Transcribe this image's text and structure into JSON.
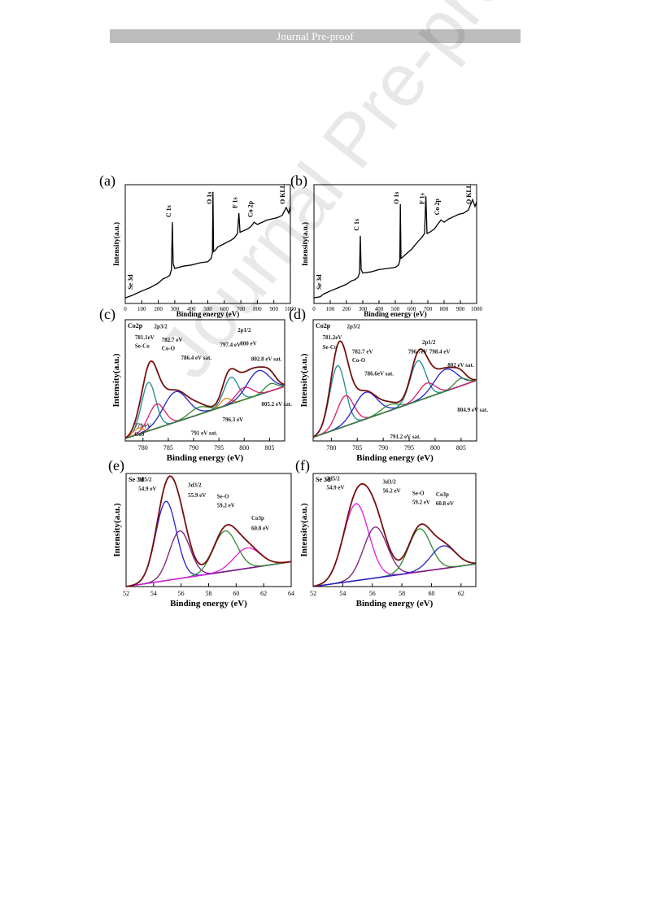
{
  "header": {
    "banner": "Journal Pre-proof"
  },
  "watermark": "Journal Pre-proof",
  "chart_data": [
    {
      "panel": "(a)",
      "type": "line",
      "xlabel": "Binding energy (eV)",
      "ylabel": "Intensity(a.u.)",
      "xlim": [
        0,
        1000
      ],
      "xticks": [
        0,
        100,
        200,
        300,
        400,
        500,
        600,
        700,
        800,
        900,
        1000
      ],
      "peaks_labels": [
        {
          "text": "Se 3d",
          "x": 55
        },
        {
          "text": "C 1s",
          "x": 285
        },
        {
          "text": "O 1s",
          "x": 531
        },
        {
          "text": "F 1s",
          "x": 688
        },
        {
          "text": "Co 2p",
          "x": 781
        },
        {
          "text": "O KLL",
          "x": 975
        }
      ],
      "series": [
        {
          "x": [
            0,
            40,
            55,
            70,
            100,
            150,
            200,
            230,
            250,
            270,
            280,
            285,
            290,
            300,
            350,
            400,
            450,
            500,
            520,
            528,
            531,
            535,
            545,
            560,
            600,
            640,
            660,
            680,
            688,
            695,
            710,
            740,
            760,
            781,
            800,
            830,
            860,
            890,
            920,
            950,
            975,
            990,
            1000
          ],
          "y": [
            0.05,
            0.07,
            0.08,
            0.09,
            0.11,
            0.14,
            0.18,
            0.22,
            0.23,
            0.25,
            0.3,
            0.72,
            0.35,
            0.31,
            0.33,
            0.34,
            0.36,
            0.37,
            0.4,
            0.45,
            0.99,
            0.46,
            0.47,
            0.5,
            0.53,
            0.56,
            0.58,
            0.62,
            0.8,
            0.63,
            0.64,
            0.66,
            0.68,
            0.72,
            0.7,
            0.72,
            0.74,
            0.75,
            0.76,
            0.78,
            0.85,
            0.8,
            0.86
          ]
        }
      ]
    },
    {
      "panel": "(b)",
      "type": "line",
      "xlabel": "Binding energy (eV)",
      "ylabel": "Intensity(a.u.)",
      "xlim": [
        0,
        1000
      ],
      "xticks": [
        0,
        100,
        200,
        300,
        400,
        500,
        600,
        700,
        800,
        900,
        1000
      ],
      "peaks_labels": [
        {
          "text": "Se 3d",
          "x": 55
        },
        {
          "text": "C 1s",
          "x": 285
        },
        {
          "text": "O 1s",
          "x": 531
        },
        {
          "text": "F 1s",
          "x": 688
        },
        {
          "text": "Co 2p",
          "x": 781
        },
        {
          "text": "O KLL",
          "x": 975
        }
      ],
      "series": [
        {
          "x": [
            0,
            40,
            55,
            70,
            100,
            150,
            200,
            230,
            250,
            270,
            280,
            285,
            290,
            300,
            350,
            400,
            450,
            500,
            520,
            528,
            531,
            535,
            545,
            560,
            600,
            640,
            660,
            680,
            688,
            695,
            710,
            740,
            760,
            781,
            800,
            830,
            860,
            890,
            920,
            950,
            975,
            990,
            1000
          ],
          "y": [
            0.05,
            0.06,
            0.08,
            0.09,
            0.11,
            0.14,
            0.17,
            0.2,
            0.21,
            0.23,
            0.27,
            0.6,
            0.3,
            0.27,
            0.28,
            0.3,
            0.31,
            0.32,
            0.34,
            0.38,
            0.88,
            0.4,
            0.41,
            0.43,
            0.48,
            0.55,
            0.58,
            0.62,
            0.95,
            0.62,
            0.63,
            0.66,
            0.7,
            0.74,
            0.72,
            0.75,
            0.77,
            0.79,
            0.8,
            0.83,
            0.92,
            0.86,
            0.9
          ]
        }
      ]
    },
    {
      "panel": "(c)",
      "type": "line",
      "title": "Co2p",
      "xlabel": "Binding energy (eV)",
      "ylabel": "Intensity(a.u.)",
      "xlim": [
        776.5,
        808
      ],
      "xticks": [
        780,
        785,
        790,
        795,
        800,
        805
      ],
      "baseline": [
        0.02,
        0.45
      ],
      "components": [
        {
          "center": 781.1,
          "amp": 0.4,
          "width": 1.4,
          "color": "#1f8a8a"
        },
        {
          "center": 782.7,
          "amp": 0.2,
          "width": 1.6,
          "color": "#e0196b"
        },
        {
          "center": 786.4,
          "amp": 0.25,
          "width": 2.4,
          "color": "#2222cc"
        },
        {
          "center": 779.0,
          "amp": 0.05,
          "width": 1.0,
          "color": "#e88a1a"
        },
        {
          "center": 791.0,
          "amp": 0.06,
          "width": 1.8,
          "color": "#2e8b2e"
        },
        {
          "center": 796.3,
          "amp": 0.06,
          "width": 1.0,
          "color": "#e88a1a"
        },
        {
          "center": 797.4,
          "amp": 0.22,
          "width": 1.4,
          "color": "#1f8a8a"
        },
        {
          "center": 800.0,
          "amp": 0.1,
          "width": 1.6,
          "color": "#e0196b"
        },
        {
          "center": 802.8,
          "amp": 0.2,
          "width": 2.2,
          "color": "#2222cc"
        },
        {
          "center": 805.2,
          "amp": 0.06,
          "width": 1.2,
          "color": "#2e8b2e"
        }
      ],
      "annotations": [
        {
          "text": "2p3/2",
          "x": 782.2,
          "y": 0.93
        },
        {
          "text": "2p1/2",
          "x": 798.7,
          "y": 0.9
        },
        {
          "text": "781.1eV",
          "x": 778.4,
          "y": 0.84
        },
        {
          "text": "Se-Co",
          "x": 778.4,
          "y": 0.77
        },
        {
          "text": "782.7 eV",
          "x": 783.7,
          "y": 0.82
        },
        {
          "text": "Co-O",
          "x": 783.7,
          "y": 0.75
        },
        {
          "text": "786.4 eV sat.",
          "x": 787.5,
          "y": 0.67
        },
        {
          "text": "797.4 eV",
          "x": 795.2,
          "y": 0.78
        },
        {
          "text": "800 eV",
          "x": 799.2,
          "y": 0.79
        },
        {
          "text": "802.8 eV sat.",
          "x": 801.4,
          "y": 0.66
        },
        {
          "text": "805.2 eV sat.",
          "x": 803.4,
          "y": 0.29
        },
        {
          "text": "796.3 eV",
          "x": 795.7,
          "y": 0.16
        },
        {
          "text": "791 eV sat.",
          "x": 789.5,
          "y": 0.05
        },
        {
          "text": "779 eV",
          "x": 778.3,
          "y": 0.11
        },
        {
          "text": "Co0",
          "x": 778.3,
          "y": 0.04
        }
      ]
    },
    {
      "panel": "(d)",
      "type": "line",
      "title": "Co2p",
      "xlabel": "Binding energy (eV)",
      "ylabel": "Intensity(a.u.)",
      "xlim": [
        776.5,
        808
      ],
      "xticks": [
        780,
        785,
        790,
        795,
        800,
        805
      ],
      "baseline": [
        0.03,
        0.5
      ],
      "components": [
        {
          "center": 781.2,
          "amp": 0.52,
          "width": 1.5,
          "color": "#1f8a8a"
        },
        {
          "center": 782.7,
          "amp": 0.25,
          "width": 1.6,
          "color": "#e0196b"
        },
        {
          "center": 786.6,
          "amp": 0.22,
          "width": 2.2,
          "color": "#2222cc"
        },
        {
          "center": 791.2,
          "amp": 0.05,
          "width": 1.6,
          "color": "#2e8b2e"
        },
        {
          "center": 796.7,
          "amp": 0.33,
          "width": 1.5,
          "color": "#1f8a8a"
        },
        {
          "center": 798.4,
          "amp": 0.12,
          "width": 1.6,
          "color": "#e0196b"
        },
        {
          "center": 802.0,
          "amp": 0.18,
          "width": 2.2,
          "color": "#2222cc"
        },
        {
          "center": 804.9,
          "amp": 0.06,
          "width": 1.2,
          "color": "#2e8b2e"
        }
      ],
      "annotations": [
        {
          "text": "2p3/2",
          "x": 783.0,
          "y": 0.93
        },
        {
          "text": "2p1/2",
          "x": 797.5,
          "y": 0.8
        },
        {
          "text": "781.2eV",
          "x": 778.3,
          "y": 0.84
        },
        {
          "text": "Se-Co",
          "x": 778.3,
          "y": 0.76
        },
        {
          "text": "782.7 eV",
          "x": 784.0,
          "y": 0.72
        },
        {
          "text": "Co-O",
          "x": 784.0,
          "y": 0.65
        },
        {
          "text": "786.6eV sat.",
          "x": 786.4,
          "y": 0.54
        },
        {
          "text": "796.7eV",
          "x": 794.8,
          "y": 0.72
        },
        {
          "text": "798.4 eV",
          "x": 798.9,
          "y": 0.72
        },
        {
          "text": "802 eV sat.",
          "x": 802.4,
          "y": 0.61
        },
        {
          "text": "804.9 eV sat.",
          "x": 804.3,
          "y": 0.24
        },
        {
          "text": "791.2 eV sat.",
          "x": 791.3,
          "y": 0.02
        }
      ]
    },
    {
      "panel": "(e)",
      "type": "line",
      "title": "Se 3d",
      "xlabel": "Binding energy (eV)",
      "ylabel": "Intensity(a.u.)",
      "xlim": [
        52,
        64
      ],
      "xticks": [
        52,
        54,
        56,
        58,
        60,
        62,
        64
      ],
      "baseline": [
        0.0,
        0.22
      ],
      "components": [
        {
          "center": 54.9,
          "amp": 0.7,
          "width": 0.75,
          "color": "#2222cc"
        },
        {
          "center": 55.9,
          "amp": 0.42,
          "width": 0.75,
          "color": "#7a1a7a"
        },
        {
          "center": 59.2,
          "amp": 0.36,
          "width": 0.85,
          "color": "#2e8b2e"
        },
        {
          "center": 60.8,
          "amp": 0.18,
          "width": 0.95,
          "color": "#e01ae0"
        }
      ],
      "annotations": [
        {
          "text": "3d5/2",
          "x": 52.9,
          "y": 0.93
        },
        {
          "text": "54.9 eV",
          "x": 52.9,
          "y": 0.85
        },
        {
          "text": "3d3/2",
          "x": 56.5,
          "y": 0.88
        },
        {
          "text": "55.9 eV",
          "x": 56.5,
          "y": 0.79
        },
        {
          "text": "Se-O",
          "x": 58.6,
          "y": 0.78
        },
        {
          "text": "59.2 eV",
          "x": 58.6,
          "y": 0.7
        },
        {
          "text": "Co3p",
          "x": 61.1,
          "y": 0.59
        },
        {
          "text": "60.8 eV",
          "x": 61.1,
          "y": 0.5
        }
      ]
    },
    {
      "panel": "(f)",
      "type": "line",
      "title": "Se 3d",
      "xlabel": "Binding energy (eV)",
      "ylabel": "Intensity(a.u.)",
      "xlim": [
        52,
        63
      ],
      "xticks": [
        52,
        54,
        56,
        58,
        60,
        62
      ],
      "baseline": [
        0.0,
        0.2
      ],
      "components": [
        {
          "center": 54.9,
          "amp": 0.68,
          "width": 0.85,
          "color": "#e01ae0"
        },
        {
          "center": 56.2,
          "amp": 0.45,
          "width": 0.8,
          "color": "#7a1a7a"
        },
        {
          "center": 59.2,
          "amp": 0.38,
          "width": 0.75,
          "color": "#2e8b2e"
        },
        {
          "center": 60.8,
          "amp": 0.2,
          "width": 0.85,
          "color": "#2222cc"
        }
      ],
      "annotations": [
        {
          "text": "3d5/2",
          "x": 52.9,
          "y": 0.94
        },
        {
          "text": "54.9 eV",
          "x": 52.9,
          "y": 0.86
        },
        {
          "text": "3d3/2",
          "x": 56.7,
          "y": 0.91
        },
        {
          "text": "56.2 eV",
          "x": 56.7,
          "y": 0.83
        },
        {
          "text": "Se-O",
          "x": 58.7,
          "y": 0.81
        },
        {
          "text": "59.2 eV",
          "x": 58.7,
          "y": 0.73
        },
        {
          "text": "Co3p",
          "x": 60.3,
          "y": 0.8
        },
        {
          "text": "60.8 eV",
          "x": 60.3,
          "y": 0.72
        }
      ]
    }
  ]
}
